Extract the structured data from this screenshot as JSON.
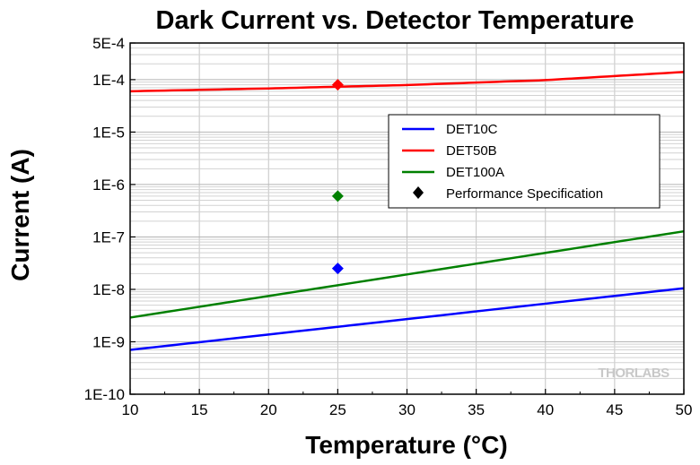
{
  "chart_data": {
    "type": "line",
    "title": "Dark Current vs. Detector Temperature",
    "xlabel": "Temperature (°C)",
    "ylabel": "Current (A)",
    "xlim": [
      10,
      50
    ],
    "ylim": [
      1e-10,
      0.0005
    ],
    "yscale": "log",
    "x_ticks": [
      10,
      15,
      20,
      25,
      30,
      35,
      40,
      45,
      50
    ],
    "x_tick_labels": [
      "10",
      "15",
      "20",
      "25",
      "30",
      "35",
      "40",
      "45",
      "50"
    ],
    "y_ticks": [
      1e-10,
      1e-09,
      1e-08,
      1e-07,
      1e-06,
      1e-05,
      0.0001,
      0.0005
    ],
    "y_tick_labels": [
      "1E-10",
      "1E-9",
      "1E-8",
      "1E-7",
      "1E-6",
      "1E-5",
      "1E-4",
      "5E-4"
    ],
    "grid": true,
    "legend_position": "center-right",
    "series": [
      {
        "name": "DET10C",
        "color": "#0000ff",
        "x": [
          10,
          50
        ],
        "y": [
          7e-10,
          1.05e-08
        ]
      },
      {
        "name": "DET50B",
        "color": "#ff0000",
        "x": [
          10,
          20,
          30,
          40,
          50
        ],
        "y": [
          6e-05,
          6.8e-05,
          7.9e-05,
          9.8e-05,
          0.00014
        ]
      },
      {
        "name": "DET100A",
        "color": "#008000",
        "x": [
          10,
          50
        ],
        "y": [
          2.9e-09,
          1.28e-07
        ]
      }
    ],
    "performance_specification": {
      "name": "Performance Specification",
      "color": "#000000",
      "points": [
        {
          "x": 25,
          "y": 2.5e-08,
          "color": "#0000ff"
        },
        {
          "x": 25,
          "y": 8e-05,
          "color": "#ff0000"
        },
        {
          "x": 25,
          "y": 6e-07,
          "color": "#008000"
        }
      ]
    },
    "watermark": "THORLABS"
  }
}
